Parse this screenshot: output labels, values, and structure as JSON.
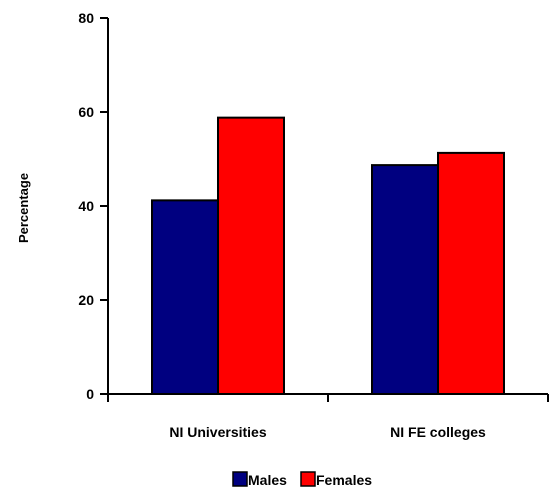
{
  "chart_data": {
    "type": "bar",
    "title": "",
    "xlabel": "",
    "ylabel": "Percentage",
    "ylim": [
      0,
      80
    ],
    "yticks": [
      0,
      20,
      40,
      60,
      80
    ],
    "categories": [
      "NI Universities",
      "NI FE colleges"
    ],
    "series": [
      {
        "name": "Males",
        "color": "#000080",
        "values": [
          41.2,
          48.7
        ]
      },
      {
        "name": "Females",
        "color": "#FF0000",
        "values": [
          58.8,
          51.3
        ]
      }
    ],
    "grid": false,
    "legend_position": "bottom"
  }
}
